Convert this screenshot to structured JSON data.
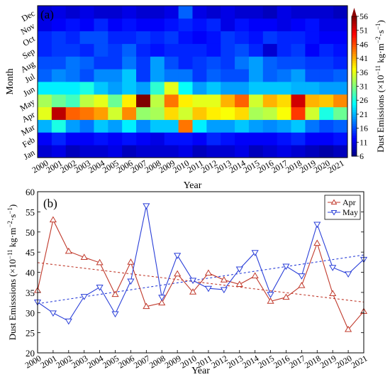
{
  "chart_data": [
    {
      "type": "heatmap",
      "panel_label": "(a)",
      "xlabel": "Year",
      "ylabel": "Month",
      "x_categories": [
        "2000",
        "2001",
        "2002",
        "2003",
        "2004",
        "2005",
        "2006",
        "2007",
        "2008",
        "2009",
        "2010",
        "2011",
        "2012",
        "2013",
        "2014",
        "2015",
        "2016",
        "2017",
        "2018",
        "2019",
        "2020",
        "2021"
      ],
      "y_categories": [
        "Jan",
        "Feb",
        "Mar",
        "Apr",
        "May",
        "Jun",
        "Jul",
        "Aug",
        "Sep",
        "Oct",
        "Nov",
        "Dec"
      ],
      "values": [
        [
          10,
          11,
          9,
          10,
          10,
          11,
          9,
          10,
          10,
          10,
          11,
          9,
          10,
          10,
          11,
          9,
          10,
          11,
          10,
          9,
          8,
          9
        ],
        [
          12,
          14,
          12,
          12,
          13,
          12,
          13,
          12,
          11,
          13,
          13,
          12,
          14,
          13,
          12,
          12,
          12,
          13,
          14,
          12,
          12,
          13
        ],
        [
          21,
          26,
          20,
          18,
          22,
          20,
          24,
          19,
          22,
          22,
          44,
          24,
          20,
          20,
          22,
          20,
          19,
          20,
          22,
          18,
          16,
          17
        ],
        [
          36,
          53,
          45,
          44,
          42,
          35,
          43,
          32,
          33,
          39,
          35,
          40,
          38,
          37,
          39,
          33,
          34,
          37,
          47,
          35,
          26,
          30
        ],
        [
          33,
          30,
          28,
          34,
          36,
          30,
          38,
          56,
          34,
          44,
          38,
          36,
          36,
          41,
          45,
          35,
          41,
          39,
          52,
          41,
          40,
          43
        ],
        [
          24,
          24,
          24,
          26,
          22,
          20,
          22,
          20,
          27,
          36,
          25,
          20,
          22,
          20,
          20,
          22,
          22,
          22,
          21,
          21,
          20,
          20
        ],
        [
          17,
          19,
          18,
          16,
          19,
          19,
          22,
          15,
          20,
          18,
          18,
          15,
          17,
          16,
          16,
          20,
          17,
          18,
          20,
          16,
          16,
          17
        ],
        [
          16,
          16,
          18,
          17,
          15,
          15,
          18,
          15,
          20,
          16,
          14,
          15,
          16,
          15,
          18,
          20,
          17,
          16,
          16,
          15,
          15,
          14
        ],
        [
          14,
          15,
          15,
          14,
          16,
          15,
          17,
          14,
          13,
          14,
          14,
          14,
          13,
          15,
          16,
          14,
          10,
          14,
          15,
          12,
          14,
          13
        ],
        [
          14,
          15,
          14,
          16,
          16,
          14,
          14,
          15,
          14,
          15,
          13,
          12,
          13,
          15,
          14,
          13,
          15,
          14,
          14,
          13,
          12,
          12
        ],
        [
          11,
          12,
          13,
          12,
          14,
          12,
          13,
          12,
          12,
          13,
          14,
          13,
          14,
          11,
          13,
          12,
          12,
          11,
          12,
          13,
          11,
          11
        ],
        [
          10,
          11,
          10,
          11,
          10,
          10,
          11,
          10,
          10,
          11,
          17,
          11,
          10,
          11,
          10,
          10,
          9,
          11,
          10,
          10,
          10,
          9
        ]
      ],
      "colorbar": {
        "label": "Dust Emissions (×10",
        "label_exp": "−11",
        "label_units": " kg·m",
        "label_units_exp": "−2",
        "label_tail": "·s",
        "label_tail_exp": "−1",
        "label_close": ")",
        "ticks": [
          6,
          11,
          16,
          21,
          26,
          31,
          36,
          41,
          46,
          51,
          56
        ],
        "range": [
          6,
          56
        ]
      }
    },
    {
      "type": "line",
      "panel_label": "(b)",
      "xlabel": "Year",
      "ylabel": "Dust Emisssions (×10",
      "ylabel_exp": "−11",
      "ylabel_units": " kg·m",
      "ylabel_units_exp": "−2",
      "ylabel_tail": "·s",
      "ylabel_tail_exp": "−1",
      "ylabel_close": ")",
      "x": [
        "2000",
        "2001",
        "2002",
        "2003",
        "2004",
        "2005",
        "2006",
        "2007",
        "2008",
        "2009",
        "2010",
        "2011",
        "2012",
        "2013",
        "2014",
        "2015",
        "2016",
        "2017",
        "2018",
        "2019",
        "2020",
        "2021"
      ],
      "ylim": [
        20,
        60
      ],
      "yticks": [
        20,
        25,
        30,
        35,
        40,
        45,
        50,
        55,
        60
      ],
      "legend_position": "top-right",
      "series": [
        {
          "name": "Apr",
          "color": "#c0392b",
          "marker": "triangle-up",
          "values": [
            35.5,
            53,
            45.2,
            43.7,
            42.4,
            34.5,
            42.5,
            31.5,
            32.4,
            39.6,
            35.1,
            39.8,
            38.1,
            37,
            39.1,
            32.8,
            33.8,
            36.7,
            47.2,
            34.7,
            25.8,
            30.3
          ],
          "trend": [
            42.4,
            32.6
          ]
        },
        {
          "name": "May",
          "color": "#2a3fd8",
          "marker": "triangle-down",
          "values": [
            32.6,
            29.9,
            27.9,
            34,
            36.3,
            29.7,
            37.8,
            56.5,
            33.8,
            44.2,
            38,
            36,
            35.7,
            40.8,
            44.9,
            34.5,
            41.5,
            39.1,
            51.9,
            41.2,
            39.6,
            43.2
          ],
          "trend": [
            32.2,
            44.3
          ]
        }
      ]
    }
  ]
}
